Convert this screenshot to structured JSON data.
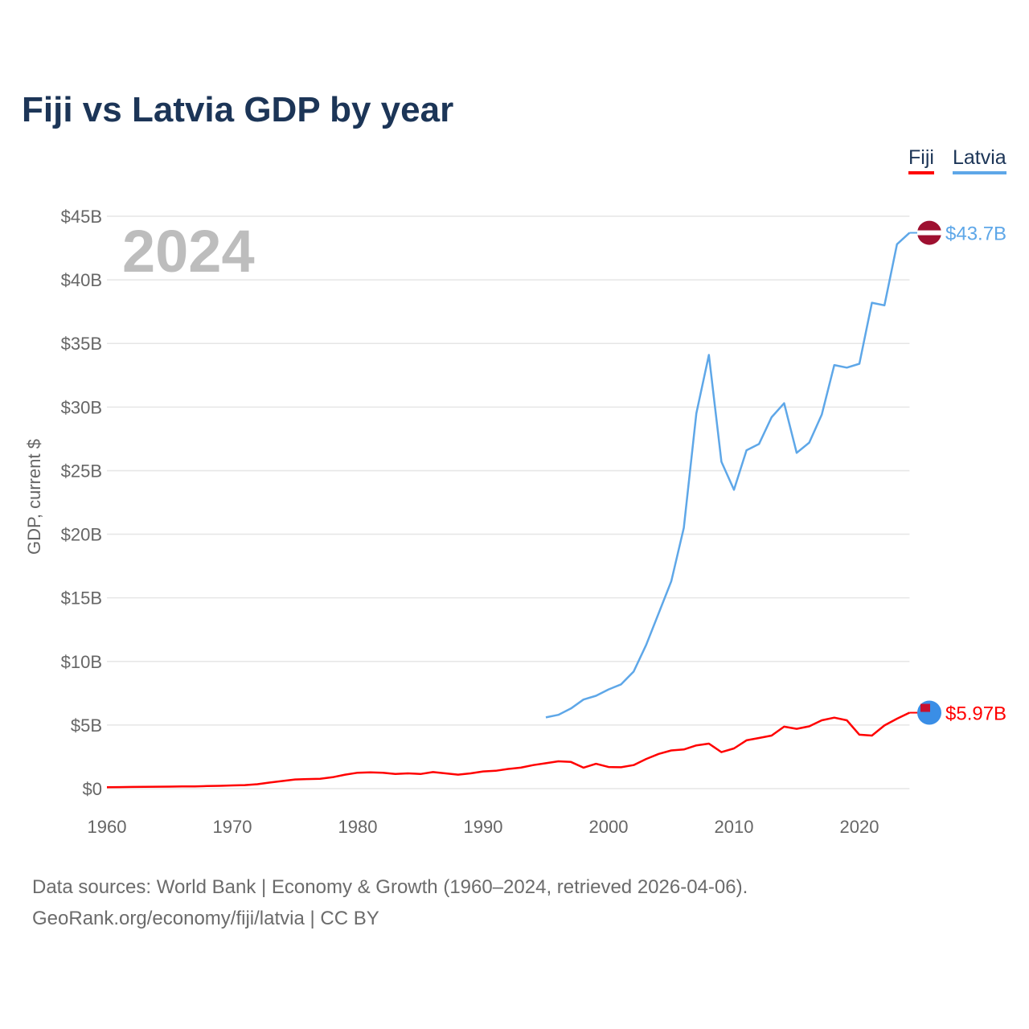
{
  "chart_data": {
    "type": "line",
    "title": "Fiji vs Latvia GDP by year",
    "xlabel": "",
    "ylabel": "GDP, current $",
    "xlim": [
      1960,
      2024
    ],
    "ylim": [
      0,
      45
    ],
    "x_ticks": [
      1960,
      1970,
      1980,
      1990,
      2000,
      2010,
      2020
    ],
    "x_tick_labels": [
      "1960",
      "1970",
      "1980",
      "1990",
      "2000",
      "2010",
      "2020"
    ],
    "y_ticks": [
      0,
      5,
      10,
      15,
      20,
      25,
      30,
      35,
      40,
      45
    ],
    "y_tick_labels": [
      "$0",
      "$5B",
      "$10B",
      "$15B",
      "$20B",
      "$25B",
      "$30B",
      "$35B",
      "$40B",
      "$45B"
    ],
    "grid": true,
    "legend_placement": "top-right",
    "year_label": "2024",
    "units": "billions current US$",
    "series": [
      {
        "name": "Fiji",
        "color": "#ff0000",
        "end_label": "$5.97B",
        "flag_icon": "fiji-flag-icon",
        "start_year": 1960,
        "values": [
          0.11,
          0.12,
          0.13,
          0.14,
          0.15,
          0.16,
          0.17,
          0.18,
          0.2,
          0.22,
          0.25,
          0.28,
          0.35,
          0.48,
          0.6,
          0.72,
          0.75,
          0.77,
          0.9,
          1.1,
          1.25,
          1.28,
          1.25,
          1.15,
          1.2,
          1.15,
          1.3,
          1.2,
          1.1,
          1.2,
          1.35,
          1.4,
          1.55,
          1.65,
          1.85,
          2.0,
          2.15,
          2.1,
          1.65,
          1.95,
          1.7,
          1.68,
          1.85,
          2.33,
          2.73,
          3.0,
          3.08,
          3.4,
          3.54,
          2.87,
          3.16,
          3.8,
          3.98,
          4.17,
          4.87,
          4.7,
          4.9,
          5.37,
          5.58,
          5.37,
          4.24,
          4.17,
          4.97,
          5.5,
          5.97
        ]
      },
      {
        "name": "Latvia",
        "color": "#5ea7e8",
        "end_label": "$43.7B",
        "flag_icon": "latvia-flag-icon",
        "start_year": 1995,
        "values": [
          5.6,
          5.8,
          6.3,
          7.0,
          7.3,
          7.8,
          8.2,
          9.2,
          11.3,
          13.8,
          16.3,
          20.5,
          29.5,
          34.1,
          25.7,
          23.5,
          26.6,
          27.1,
          29.2,
          30.3,
          26.4,
          27.2,
          29.4,
          33.3,
          33.1,
          33.4,
          38.2,
          38.0,
          42.8,
          43.7
        ]
      }
    ]
  },
  "source": {
    "line1": "Data sources: World Bank | Economy & Growth (1960–2024, retrieved 2026-04-06).",
    "line2": "GeoRank.org/economy/fiji/latvia | CC BY"
  }
}
